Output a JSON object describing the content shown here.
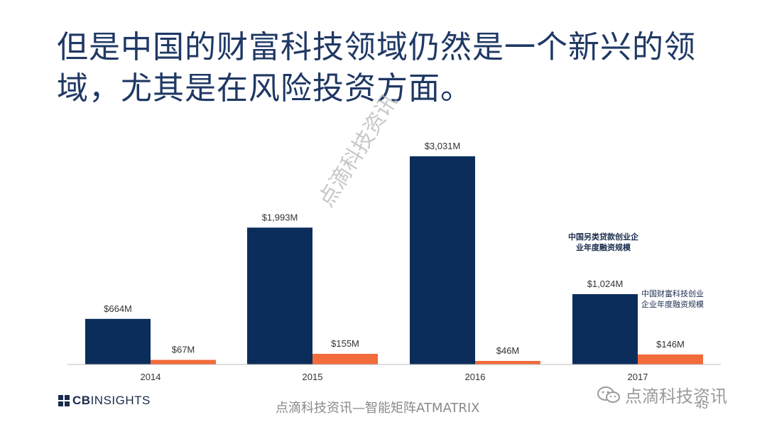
{
  "slide": {
    "title": "但是中国的财富科技领域仍然是一个新兴的领域，尤其是在风险投资方面。",
    "watermark": "点滴科技资讯",
    "footer_text": "点滴科技资讯—智能矩阵ATMATRIX",
    "page_number": "45",
    "logo": {
      "prefix": "CB",
      "suffix": "INSIGHTS"
    },
    "wechat_label": "点滴科技资讯"
  },
  "colors": {
    "navy": "#0b2d5b",
    "orange": "#f26b3a",
    "axis": "#bdbdbd",
    "text": "#1a2b4c"
  },
  "chart_data": {
    "type": "bar",
    "categories": [
      "2014",
      "2015",
      "2016",
      "2017"
    ],
    "series": [
      {
        "name": "中国另类贷款创业企业年度融资规模",
        "values": [
          664,
          1993,
          3031,
          1024
        ],
        "labels": [
          "$664M",
          "$1,993M",
          "$3,031M",
          "$1,024M"
        ],
        "color": "#0b2d5b"
      },
      {
        "name": "中国财富科技创业企业年度融资规模",
        "values": [
          67,
          155,
          46,
          146
        ],
        "labels": [
          "$67M",
          "$155M",
          "$46M",
          "$146M"
        ],
        "color": "#f26b3a"
      }
    ],
    "ylim": [
      0,
      3031
    ],
    "grid": false,
    "legend": "inline-right",
    "annotations": [
      {
        "text_lines": [
          "中国另类贷款创业企",
          "业年度融资规模"
        ]
      },
      {
        "text_lines": [
          "中国财富科技创业",
          "企业年度融资规模"
        ]
      }
    ]
  }
}
